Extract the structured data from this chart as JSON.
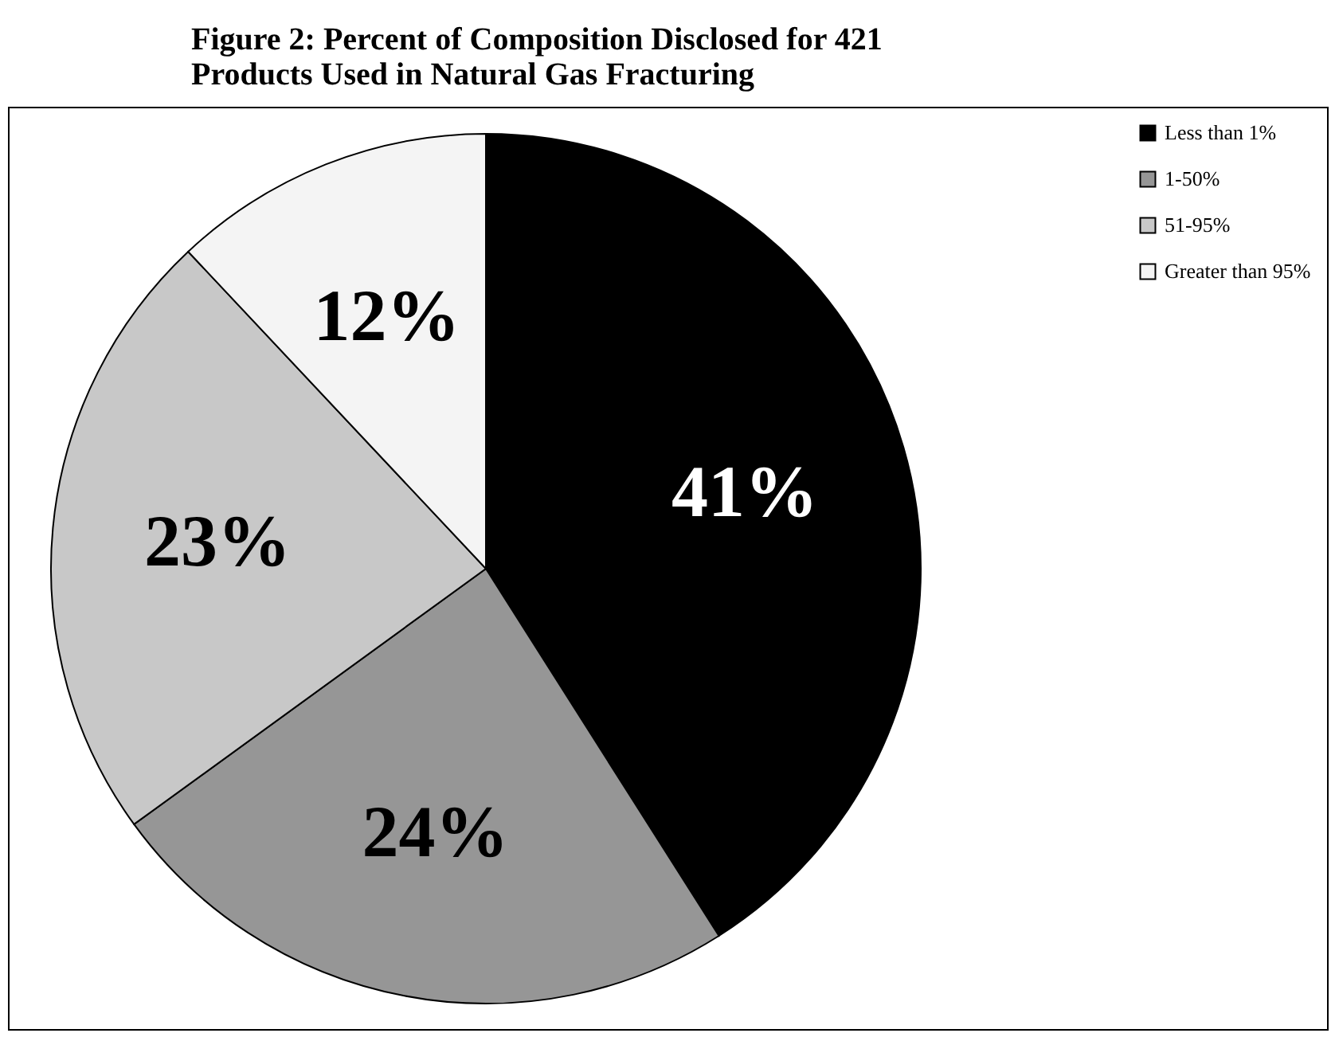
{
  "chart_data": {
    "type": "pie",
    "title": "Figure 2:  Percent of Composition Disclosed for 421 Products Used in Natural Gas Fracturing",
    "categories": [
      "Less than 1%",
      "1-50%",
      "51-95%",
      "Greater than 95%"
    ],
    "values": [
      41,
      24,
      23,
      12
    ],
    "colors": [
      "#000000",
      "#969696",
      "#c8c8c8",
      "#f4f4f4"
    ],
    "value_labels": [
      "41%",
      "24%",
      "23%",
      "12%"
    ],
    "legend": "top right"
  }
}
